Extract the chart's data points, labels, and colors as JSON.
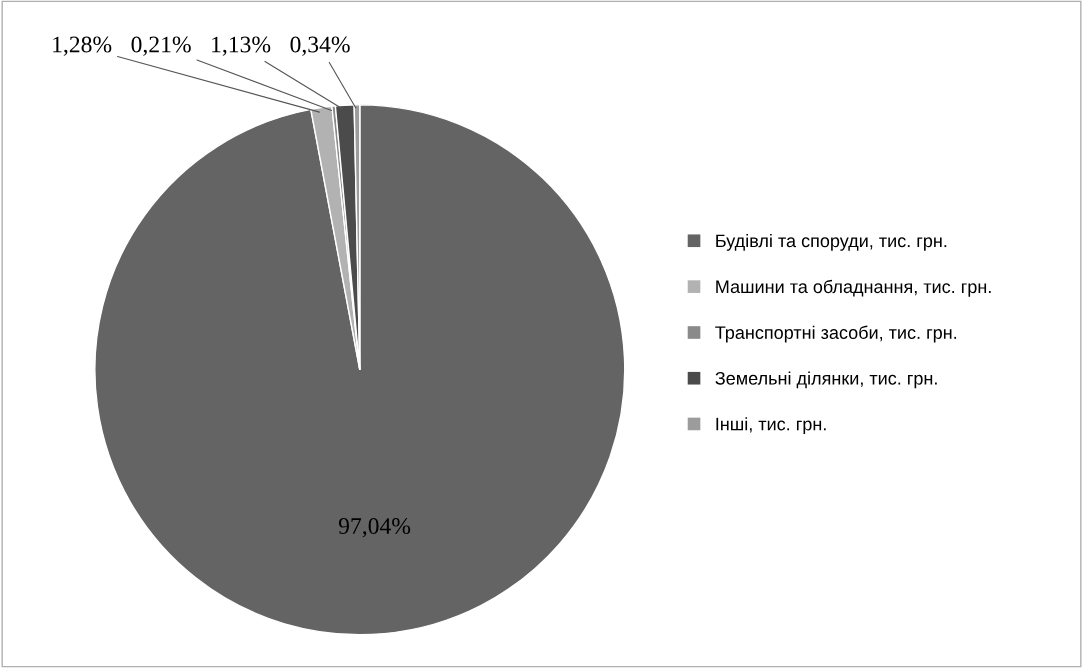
{
  "chart_data": {
    "type": "pie",
    "categories": [
      "Будівлі та споруди, тис. грн.",
      "Машини та обладнання, тис. грн.",
      "Транспортні засоби, тис. грн.",
      "Земельні ділянки, тис. грн.",
      "Інші, тис. грн."
    ],
    "values": [
      97.04,
      1.28,
      0.21,
      1.13,
      0.34
    ],
    "value_labels": [
      "97,04%",
      "1,28%",
      "0,21%",
      "1,13%",
      "0,34%"
    ],
    "colors": [
      "#646464",
      "#b2b2b2",
      "#8a8a8a",
      "#4b4b4b",
      "#9c9c9c"
    ],
    "legend": "right"
  }
}
